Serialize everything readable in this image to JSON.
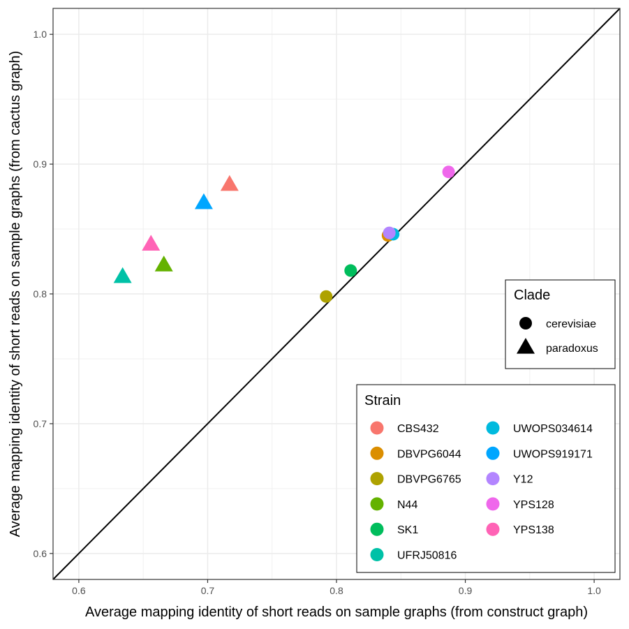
{
  "chart_data": {
    "type": "scatter",
    "xlabel": "Average mapping identity of short reads on sample graphs (from construct graph)",
    "ylabel": "Average mapping identity of short reads on sample graphs (from cactus graph)",
    "xlim": [
      0.58,
      1.02
    ],
    "ylim": [
      0.58,
      1.02
    ],
    "x_ticks": [
      0.6,
      0.7,
      0.8,
      0.9,
      1.0
    ],
    "y_ticks": [
      0.6,
      0.7,
      0.8,
      0.9,
      1.0
    ],
    "x_tick_labels": [
      "0.6",
      "0.7",
      "0.8",
      "0.9",
      "1.0"
    ],
    "y_tick_labels": [
      "0.6",
      "0.7",
      "0.8",
      "0.9",
      "1.0"
    ],
    "grid": true,
    "reference_line": "y = x",
    "points": [
      {
        "strain": "CBS432",
        "clade": "paradoxus",
        "x": 0.717,
        "y": 0.884
      },
      {
        "strain": "UWOPS919171",
        "clade": "paradoxus",
        "x": 0.697,
        "y": 0.87
      },
      {
        "strain": "YPS138",
        "clade": "paradoxus",
        "x": 0.656,
        "y": 0.838
      },
      {
        "strain": "N44",
        "clade": "paradoxus",
        "x": 0.666,
        "y": 0.822
      },
      {
        "strain": "UFRJ50816",
        "clade": "paradoxus",
        "x": 0.634,
        "y": 0.813
      },
      {
        "strain": "YPS128",
        "clade": "cerevisiae",
        "x": 0.887,
        "y": 0.894
      },
      {
        "strain": "DBVPG6044",
        "clade": "cerevisiae",
        "x": 0.84,
        "y": 0.845
      },
      {
        "strain": "UWOPS034614",
        "clade": "cerevisiae",
        "x": 0.844,
        "y": 0.846
      },
      {
        "strain": "Y12",
        "clade": "cerevisiae",
        "x": 0.841,
        "y": 0.847
      },
      {
        "strain": "SK1",
        "clade": "cerevisiae",
        "x": 0.811,
        "y": 0.818
      },
      {
        "strain": "DBVPG6765",
        "clade": "cerevisiae",
        "x": 0.792,
        "y": 0.798
      }
    ],
    "legend_clade": {
      "title": "Clade",
      "placement": "right",
      "items": [
        {
          "label": "cerevisiae",
          "shape": "circle"
        },
        {
          "label": "paradoxus",
          "shape": "triangle"
        }
      ]
    },
    "legend_strain": {
      "title": "Strain",
      "placement": "bottom-right",
      "items": [
        {
          "label": "CBS432",
          "color": "#F8766D"
        },
        {
          "label": "DBVPG6044",
          "color": "#DB8E00"
        },
        {
          "label": "DBVPG6765",
          "color": "#AEA200"
        },
        {
          "label": "N44",
          "color": "#64B200"
        },
        {
          "label": "SK1",
          "color": "#00BD5C"
        },
        {
          "label": "UFRJ50816",
          "color": "#00C1A7"
        },
        {
          "label": "UWOPS034614",
          "color": "#00BADE"
        },
        {
          "label": "UWOPS919171",
          "color": "#00A6FF"
        },
        {
          "label": "Y12",
          "color": "#B385FF"
        },
        {
          "label": "YPS128",
          "color": "#EF67EB"
        },
        {
          "label": "YPS138",
          "color": "#FF63B6"
        }
      ]
    }
  }
}
